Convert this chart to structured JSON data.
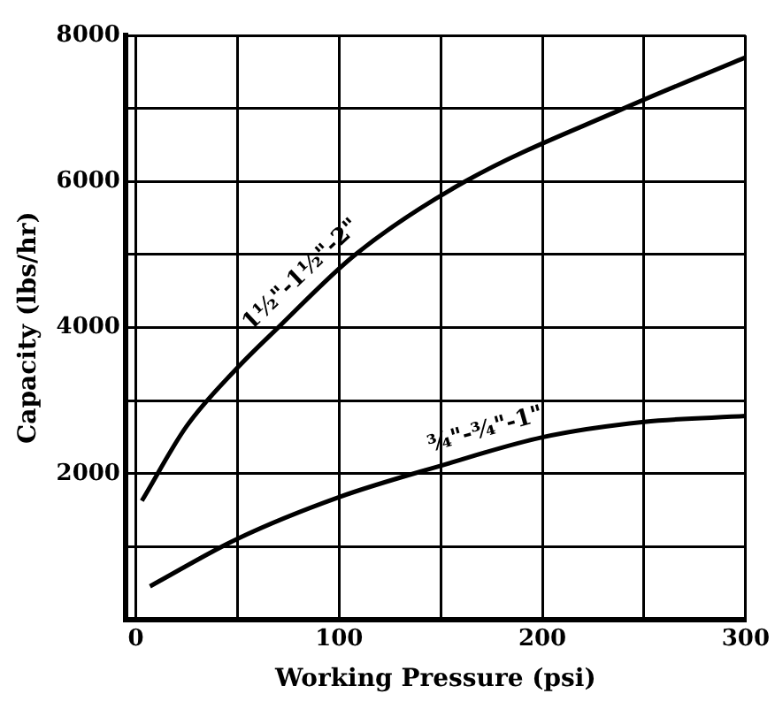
{
  "chart_data": {
    "type": "line",
    "xlabel": "Working Pressure (psi)",
    "ylabel": "Capacity (lbs/hr)",
    "xlim": [
      -5,
      300
    ],
    "xticks": [
      0,
      {
        "value": 50,
        "label": null
      },
      100,
      {
        "value": 150,
        "label": null
      },
      200,
      {
        "value": 250,
        "label": null
      },
      300
    ],
    "ylim": [
      0,
      8000
    ],
    "yticks": [
      {
        "value": 1000,
        "label": null
      },
      2000,
      {
        "value": 3000,
        "label": null
      },
      4000,
      {
        "value": 5000,
        "label": null
      },
      6000,
      {
        "value": 7000,
        "label": null
      },
      8000
    ],
    "grid": true,
    "legend": false,
    "marker": "none",
    "line_style": "solid",
    "series": [
      {
        "name": "1½\"-1½\"-2\"",
        "color": "#000000",
        "x": [
          3,
          25,
          50,
          70,
          108,
          162,
          240,
          300
        ],
        "values": [
          1630,
          2650,
          3450,
          4000,
          5000,
          6000,
          7000,
          7700
        ]
      },
      {
        "name": "¾\"-¾\"-1\"",
        "color": "#000000",
        "x": [
          7,
          50,
          100,
          150,
          200,
          250,
          300
        ],
        "values": [
          460,
          1110,
          1680,
          2110,
          2500,
          2710,
          2790
        ]
      }
    ]
  }
}
